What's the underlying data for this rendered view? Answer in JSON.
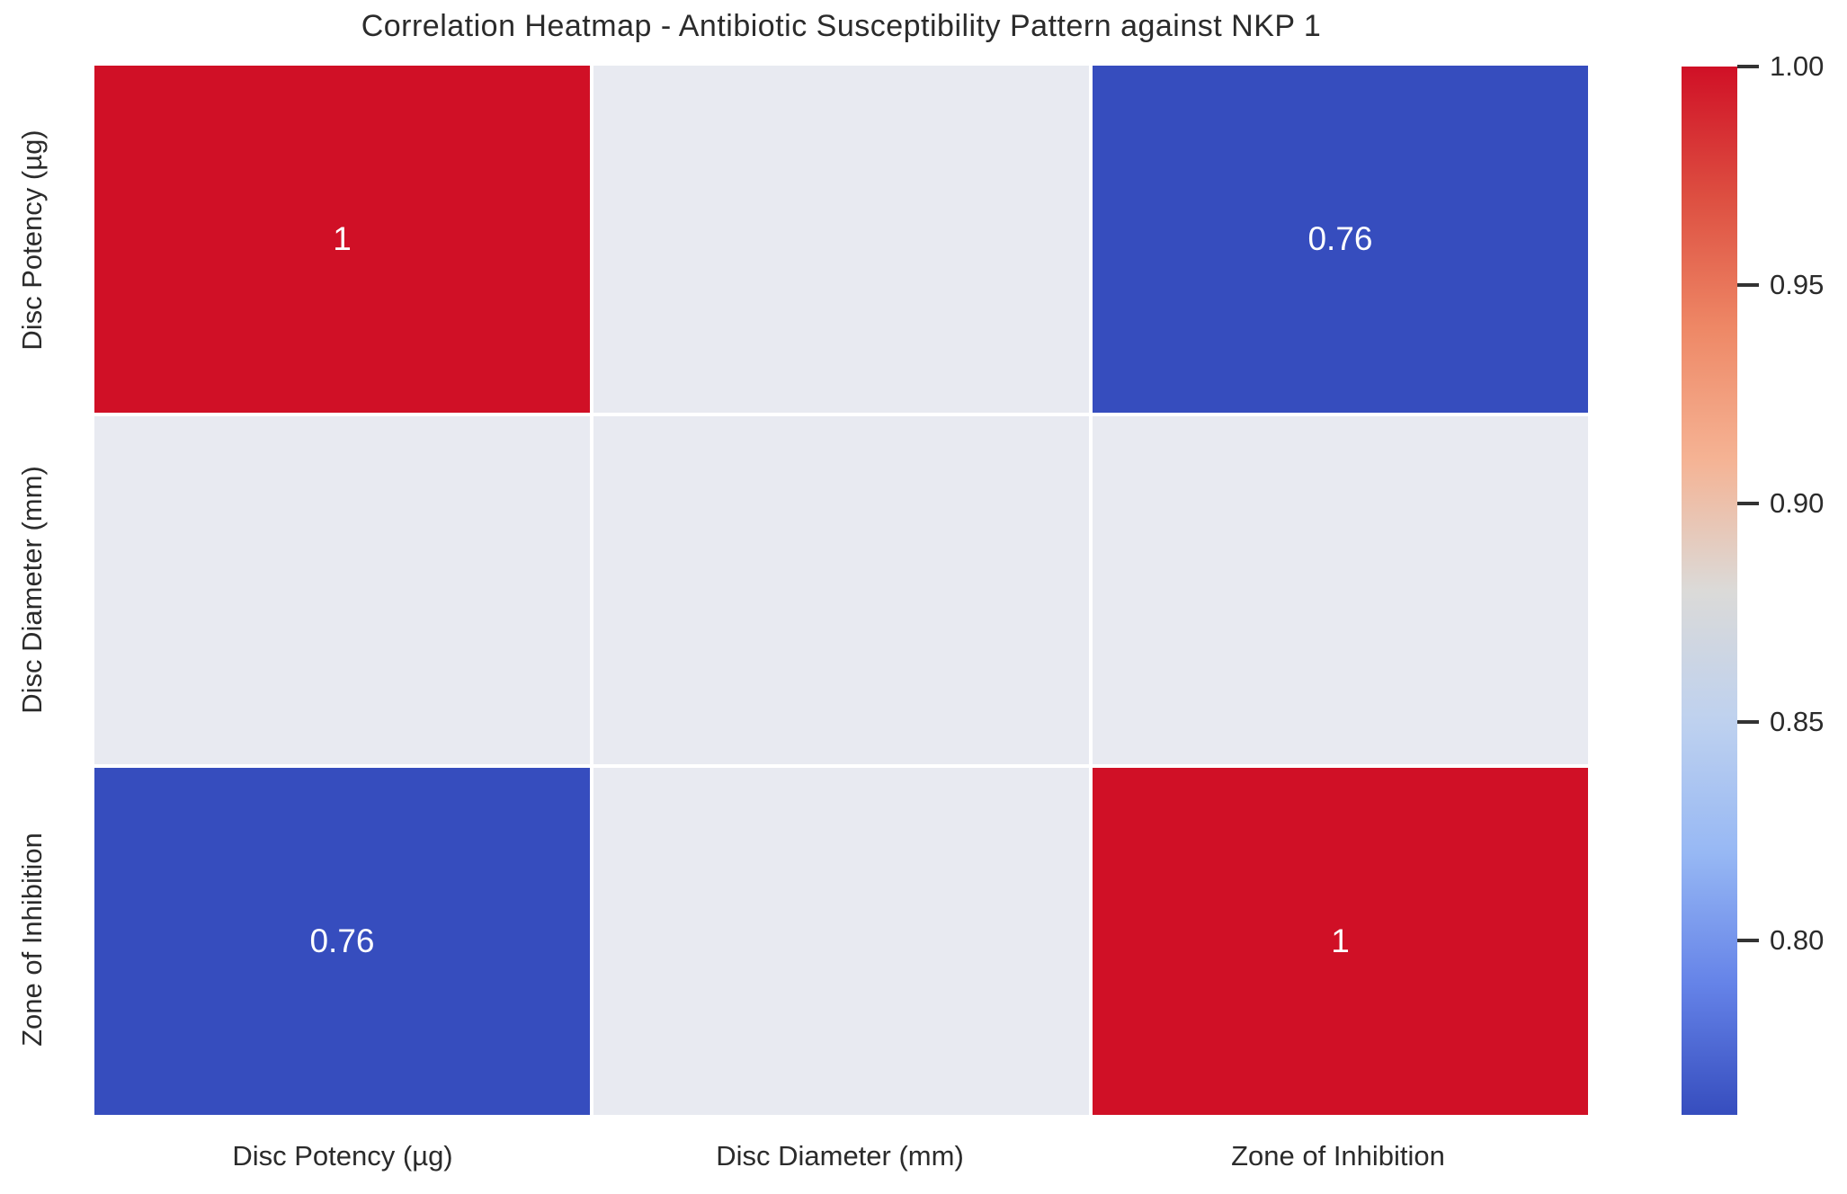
{
  "chart_data": {
    "type": "heatmap",
    "title": "Correlation Heatmap - Antibiotic Susceptibility Pattern against NKP 1",
    "variables": [
      "Disc Potency (µg)",
      "Disc Diameter (mm)",
      "Zone of Inhibition"
    ],
    "x_tick_labels": [
      "Disc Potency (µg)",
      "Disc Diameter (mm)",
      "Zone of Inhibition"
    ],
    "y_tick_labels": [
      "Disc Potency (µg)",
      "Disc Diameter (mm)",
      "Zone of Inhibition"
    ],
    "matrix": [
      [
        1,
        null,
        0.76
      ],
      [
        null,
        null,
        null
      ],
      [
        0.76,
        null,
        1
      ]
    ],
    "cell_labels": [
      [
        "1",
        "",
        "0.76"
      ],
      [
        "",
        "",
        ""
      ],
      [
        "0.76",
        "",
        "1"
      ]
    ],
    "legend_position": "right-colorbar",
    "grid": false,
    "colorbar": {
      "ticks": [
        "1.00",
        "0.95",
        "0.90",
        "0.85",
        "0.80"
      ],
      "vmin": 0.76,
      "vmax": 1.0,
      "colormap": "coolwarm",
      "colormap_stops": [
        "#d01026",
        "#dd4f41",
        "#ee8866",
        "#f5b394",
        "#dbdad8",
        "#bed1ef",
        "#97b8f4",
        "#6583e8",
        "#364dbe"
      ]
    }
  },
  "colors": {
    "high_correlation": "#d01026",
    "low_correlation": "#364dbe",
    "nan_cell": "#e8eaf1",
    "cell_text": "#ffffff",
    "axis_text": "#2b2b2b",
    "gridline": "#ffffff",
    "background": "#ffffff"
  }
}
